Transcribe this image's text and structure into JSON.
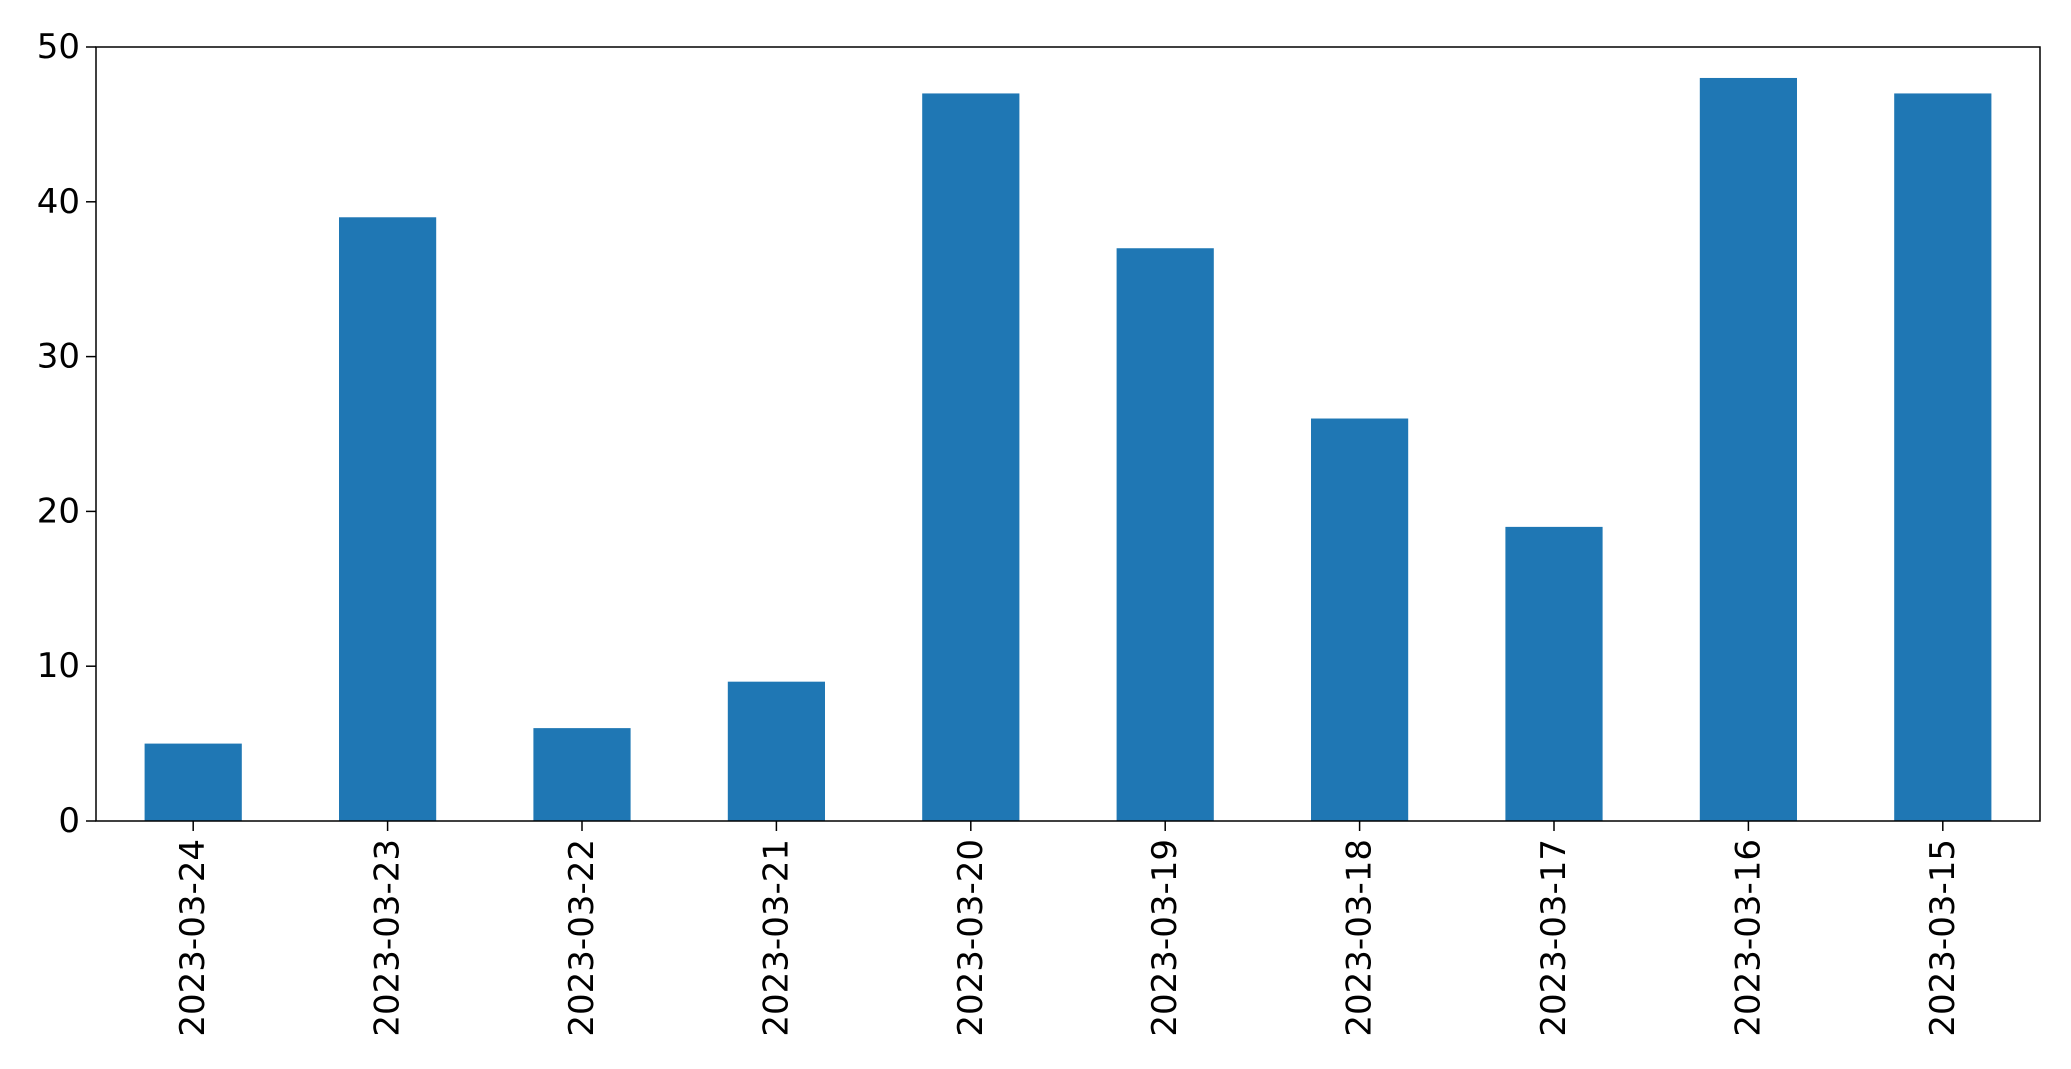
{
  "chart_data": {
    "type": "bar",
    "title": "",
    "xlabel": "",
    "ylabel": "",
    "categories": [
      "2023-03-24",
      "2023-03-23",
      "2023-03-22",
      "2023-03-21",
      "2023-03-20",
      "2023-03-19",
      "2023-03-18",
      "2023-03-17",
      "2023-03-16",
      "2023-03-15"
    ],
    "values": [
      5,
      39,
      6,
      9,
      47,
      37,
      26,
      19,
      48,
      47
    ],
    "ylim": [
      0,
      50
    ],
    "yticks": [
      0,
      10,
      20,
      30,
      40,
      50
    ],
    "bar_color": "#1f77b4",
    "grid": false,
    "legend": "none"
  }
}
